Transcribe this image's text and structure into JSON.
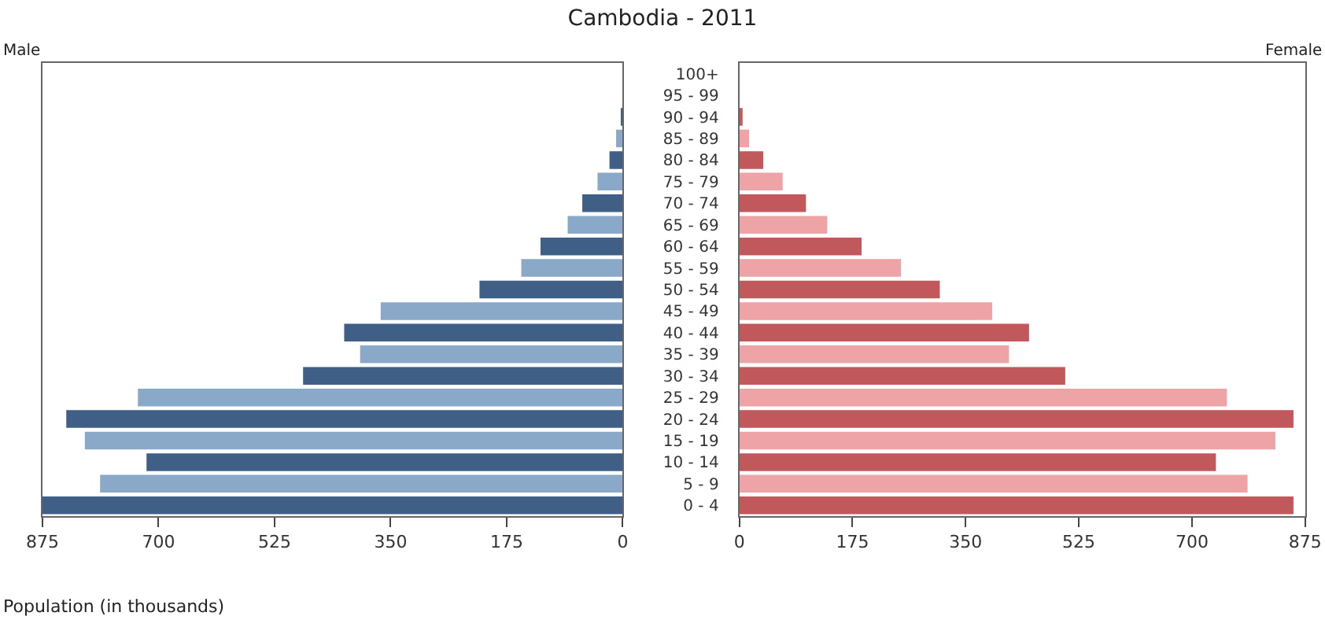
{
  "chart_data": [
    {
      "type": "bar",
      "orientation": "horizontal",
      "title": "Cambodia - 2011",
      "xlabel": "Population (in thousands)",
      "tick_labels": "x",
      "series": [
        {
          "name": "Male",
          "colors": [
            "#3f5f87",
            "#8aa8c8",
            "#3f5f87",
            "#8aa8c8",
            "#3f5f87",
            "#8aa8c8",
            "#3f5f87",
            "#8aa8c8",
            "#3f5f87",
            "#8aa8c8",
            "#3f5f87",
            "#8aa8c8",
            "#3f5f87",
            "#8aa8c8",
            "#3f5f87",
            "#8aa8c8",
            "#3f5f87",
            "#8aa8c8",
            "#3f5f87",
            "#8aa8c8",
            "#3f5f87"
          ],
          "values": [
            0,
            null,
            3,
            10,
            20,
            38,
            61,
            83,
            124,
            153,
            216,
            365,
            420,
            396,
            482,
            731,
            839,
            811,
            718,
            788,
            875
          ]
        }
      ],
      "xlim": [
        875,
        0
      ],
      "xticks": [
        875,
        700,
        525,
        350,
        175,
        0
      ]
    },
    {
      "type": "bar",
      "orientation": "horizontal",
      "categories": [
        "100+",
        "95 - 99",
        "90 - 94",
        "85 - 89",
        "80 - 84",
        "75 - 79",
        "70 - 74",
        "65 - 69",
        "60 - 64",
        "55 - 59",
        "50 - 54",
        "45 - 49",
        "40 - 44",
        "35 - 39",
        "30 - 34",
        "25 - 29",
        "20 - 24",
        "15 - 19",
        "10 - 14",
        "5 - 9",
        "0 - 4"
      ],
      "series": [
        {
          "name": "Female",
          "colors": [
            "#c0585c",
            "#eea3a6",
            "#c0585c",
            "#eea3a6",
            "#c0585c",
            "#eea3a6",
            "#c0585c",
            "#eea3a6",
            "#c0585c",
            "#eea3a6",
            "#c0585c",
            "#eea3a6",
            "#c0585c",
            "#eea3a6",
            "#c0585c",
            "#eea3a6",
            "#c0585c",
            "#eea3a6",
            "#c0585c",
            "#eea3a6",
            "#c0585c"
          ],
          "values": [
            0,
            null,
            5,
            15,
            37,
            67,
            103,
            136,
            189,
            250,
            310,
            391,
            448,
            417,
            504,
            754,
            857,
            829,
            737,
            786,
            857
          ]
        }
      ],
      "xlim": [
        0,
        875
      ],
      "xticks": [
        0,
        175,
        350,
        525,
        700,
        875
      ]
    }
  ]
}
